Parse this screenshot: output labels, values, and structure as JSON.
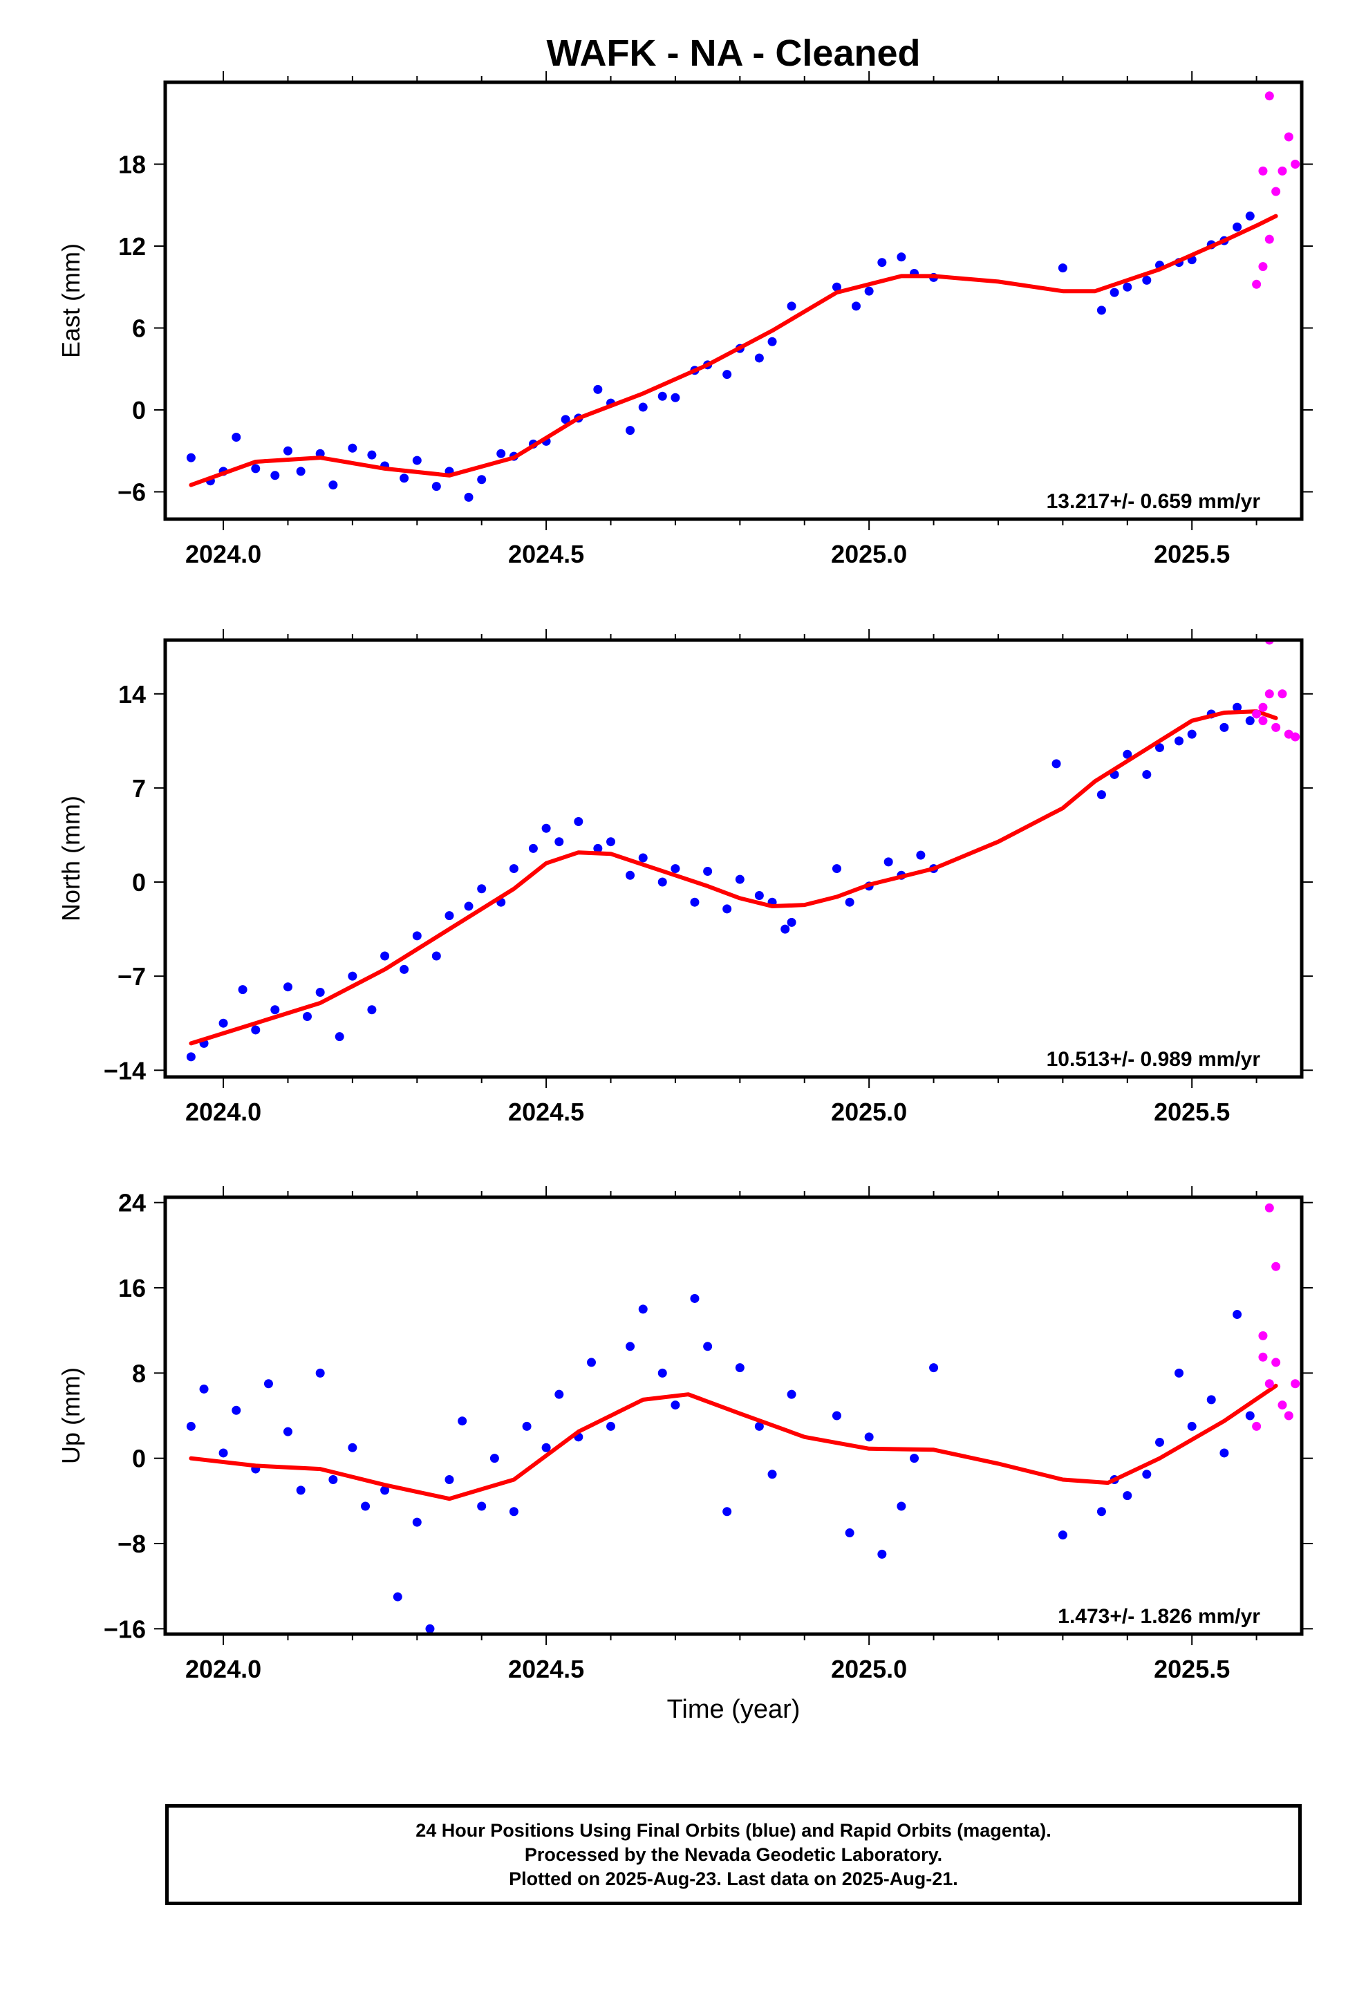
{
  "title": "WAFK  - NA - Cleaned",
  "xlabel": "Time (year)",
  "footer": [
    "24 Hour Positions Using Final Orbits (blue) and Rapid Orbits (magenta).",
    "Processed by the Nevada Geodetic Laboratory.",
    "Plotted on 2025-Aug-23. Last data on 2025-Aug-21."
  ],
  "colors": {
    "final_orbits": "#0000ff",
    "rapid_orbits": "#ff00ff",
    "model_fit": "#ff0000",
    "axes": "#000000"
  },
  "chart_data": [
    {
      "type": "scatter",
      "ylabel": "East (mm)",
      "xlim": [
        2023.91,
        2025.67
      ],
      "ylim": [
        -8,
        24
      ],
      "xticks": [
        2024.0,
        2024.5,
        2025.0,
        2025.5
      ],
      "xtick_labels": [
        "2024.0",
        "2024.5",
        "2025.0",
        "2025.5"
      ],
      "yticks": [
        -6,
        0,
        6,
        12,
        18
      ],
      "ytick_labels": [
        "−6",
        "0",
        "6",
        "12",
        "18"
      ],
      "rate_text": "13.217+/- 0.659 mm/yr",
      "grid": false,
      "series": [
        {
          "x": [
            2023.95,
            2024.05,
            2024.15,
            2024.25,
            2024.35,
            2024.45,
            2024.55,
            2024.65,
            2024.75,
            2024.85,
            2024.95,
            2025.05,
            2025.1,
            2025.2,
            2025.3,
            2025.35,
            2025.45,
            2025.55,
            2025.6,
            2025.63
          ],
          "values": [
            -5.5,
            -3.8,
            -3.5,
            -4.3,
            -4.8,
            -3.5,
            -0.6,
            1.2,
            3.3,
            5.8,
            8.6,
            9.8,
            9.8,
            9.4,
            8.7,
            8.7,
            10.3,
            12.4,
            13.5,
            14.2
          ]
        },
        {
          "x": [
            2023.95,
            2023.98,
            2024.0,
            2024.02,
            2024.05,
            2024.08,
            2024.1,
            2024.12,
            2024.15,
            2024.17,
            2024.2,
            2024.23,
            2024.25,
            2024.28,
            2024.3,
            2024.33,
            2024.35,
            2024.38,
            2024.4,
            2024.43,
            2024.45,
            2024.48,
            2024.5,
            2024.53,
            2024.55,
            2024.58,
            2024.6,
            2024.63,
            2024.65,
            2024.68,
            2024.7,
            2024.73,
            2024.75,
            2024.78,
            2024.8,
            2024.83,
            2024.85,
            2024.88,
            2024.95,
            2024.98,
            2025.0,
            2025.02,
            2025.05,
            2025.07,
            2025.1,
            2025.3,
            2025.36,
            2025.38,
            2025.4,
            2025.43,
            2025.45,
            2025.48,
            2025.5,
            2025.53,
            2025.55,
            2025.57,
            2025.59
          ],
          "values": [
            -3.5,
            -5.2,
            -4.5,
            -2.0,
            -4.3,
            -4.8,
            -3.0,
            -4.5,
            -3.2,
            -5.5,
            -2.8,
            -3.3,
            -4.1,
            -5.0,
            -3.7,
            -5.6,
            -4.5,
            -6.4,
            -5.1,
            -3.2,
            -3.4,
            -2.5,
            -2.3,
            -0.7,
            -0.6,
            1.5,
            0.5,
            -1.5,
            0.2,
            1.0,
            0.9,
            2.9,
            3.3,
            2.6,
            4.5,
            3.8,
            5.0,
            7.6,
            9.0,
            7.6,
            8.7,
            10.8,
            11.2,
            10.0,
            9.7,
            10.4,
            7.3,
            8.6,
            9.0,
            9.5,
            10.6,
            10.8,
            11.0,
            12.1,
            12.4,
            13.4,
            14.2
          ]
        },
        {
          "x": [
            2025.6,
            2025.61,
            2025.62,
            2025.63,
            2025.64,
            2025.65,
            2025.62,
            2025.66,
            2025.61
          ],
          "values": [
            9.2,
            10.5,
            12.5,
            16.0,
            17.5,
            20.0,
            23.0,
            18.0,
            17.5
          ]
        }
      ]
    },
    {
      "type": "scatter",
      "ylabel": "North (mm)",
      "xlim": [
        2023.91,
        2025.67
      ],
      "ylim": [
        -14.5,
        18
      ],
      "xticks": [
        2024.0,
        2024.5,
        2025.0,
        2025.5
      ],
      "xtick_labels": [
        "2024.0",
        "2024.5",
        "2025.0",
        "2025.5"
      ],
      "yticks": [
        -14,
        -7,
        0,
        7,
        14
      ],
      "ytick_labels": [
        "−14",
        "−7",
        "0",
        "7",
        "14"
      ],
      "rate_text": "10.513+/- 0.989 mm/yr",
      "grid": false,
      "series": [
        {
          "x": [
            2023.95,
            2024.05,
            2024.15,
            2024.25,
            2024.35,
            2024.45,
            2024.5,
            2024.55,
            2024.6,
            2024.65,
            2024.7,
            2024.75,
            2024.8,
            2024.85,
            2024.9,
            2024.95,
            2025.0,
            2025.05,
            2025.1,
            2025.2,
            2025.3,
            2025.35,
            2025.4,
            2025.45,
            2025.5,
            2025.55,
            2025.6,
            2025.63
          ],
          "values": [
            -12.0,
            -10.5,
            -9.0,
            -6.5,
            -3.5,
            -0.5,
            1.4,
            2.2,
            2.1,
            1.3,
            0.5,
            -0.3,
            -1.2,
            -1.8,
            -1.7,
            -1.1,
            -0.2,
            0.4,
            1.0,
            3.0,
            5.5,
            7.5,
            9.0,
            10.5,
            12.0,
            12.6,
            12.7,
            12.2
          ]
        },
        {
          "x": [
            2023.95,
            2023.97,
            2024.0,
            2024.03,
            2024.05,
            2024.08,
            2024.1,
            2024.13,
            2024.15,
            2024.18,
            2024.2,
            2024.23,
            2024.25,
            2024.28,
            2024.3,
            2024.33,
            2024.35,
            2024.38,
            2024.4,
            2024.43,
            2024.45,
            2024.48,
            2024.5,
            2024.52,
            2024.55,
            2024.58,
            2024.6,
            2024.63,
            2024.65,
            2024.68,
            2024.7,
            2024.73,
            2024.75,
            2024.78,
            2024.8,
            2024.83,
            2024.85,
            2024.87,
            2024.88,
            2024.95,
            2024.97,
            2025.0,
            2025.03,
            2025.05,
            2025.08,
            2025.1,
            2025.29,
            2025.36,
            2025.38,
            2025.4,
            2025.43,
            2025.45,
            2025.48,
            2025.5,
            2025.53,
            2025.55,
            2025.57,
            2025.59
          ],
          "values": [
            -13.0,
            -12.0,
            -10.5,
            -8.0,
            -11.0,
            -9.5,
            -7.8,
            -10.0,
            -8.2,
            -11.5,
            -7.0,
            -9.5,
            -5.5,
            -6.5,
            -4.0,
            -5.5,
            -2.5,
            -1.8,
            -0.5,
            -1.5,
            1.0,
            2.5,
            4.0,
            3.0,
            4.5,
            2.5,
            3.0,
            0.5,
            1.8,
            0.0,
            1.0,
            -1.5,
            0.8,
            -2.0,
            0.2,
            -1.0,
            -1.5,
            -3.5,
            -3.0,
            1.0,
            -1.5,
            -0.3,
            1.5,
            0.5,
            2.0,
            1.0,
            8.8,
            6.5,
            8.0,
            9.5,
            8.0,
            10.0,
            10.5,
            11.0,
            12.5,
            11.5,
            13.0,
            12.0
          ]
        },
        {
          "x": [
            2025.6,
            2025.61,
            2025.62,
            2025.63,
            2025.64,
            2025.65,
            2025.62,
            2025.66,
            2025.61
          ],
          "values": [
            12.5,
            13.0,
            14.0,
            11.5,
            14.0,
            11.0,
            18.0,
            10.8,
            12.0
          ]
        }
      ]
    },
    {
      "type": "scatter",
      "ylabel": "Up (mm)",
      "xlim": [
        2023.91,
        2025.67
      ],
      "ylim": [
        -16.5,
        24.5
      ],
      "xticks": [
        2024.0,
        2024.5,
        2025.0,
        2025.5
      ],
      "xtick_labels": [
        "2024.0",
        "2024.5",
        "2025.0",
        "2025.5"
      ],
      "yticks": [
        -16,
        -8,
        0,
        8,
        16,
        24
      ],
      "ytick_labels": [
        "−16",
        "−8",
        "0",
        "8",
        "16",
        "24"
      ],
      "rate_text": "1.473+/- 1.826 mm/yr",
      "grid": false,
      "series": [
        {
          "x": [
            2023.95,
            2024.05,
            2024.15,
            2024.25,
            2024.35,
            2024.45,
            2024.55,
            2024.65,
            2024.72,
            2024.8,
            2024.9,
            2025.0,
            2025.1,
            2025.2,
            2025.3,
            2025.37,
            2025.45,
            2025.55,
            2025.63
          ],
          "values": [
            0.0,
            -0.7,
            -1.0,
            -2.5,
            -3.8,
            -2.0,
            2.5,
            5.5,
            6.0,
            4.2,
            2.0,
            0.9,
            0.8,
            -0.5,
            -2.0,
            -2.3,
            0.0,
            3.5,
            6.8
          ]
        },
        {
          "x": [
            2023.95,
            2023.97,
            2024.0,
            2024.02,
            2024.05,
            2024.07,
            2024.1,
            2024.12,
            2024.15,
            2024.17,
            2024.2,
            2024.22,
            2024.25,
            2024.27,
            2024.3,
            2024.32,
            2024.35,
            2024.37,
            2024.4,
            2024.42,
            2024.45,
            2024.47,
            2024.5,
            2024.52,
            2024.55,
            2024.57,
            2024.6,
            2024.63,
            2024.65,
            2024.68,
            2024.7,
            2024.73,
            2024.75,
            2024.78,
            2024.8,
            2024.83,
            2024.85,
            2024.88,
            2024.95,
            2024.97,
            2025.0,
            2025.02,
            2025.05,
            2025.07,
            2025.1,
            2025.3,
            2025.36,
            2025.38,
            2025.4,
            2025.43,
            2025.45,
            2025.48,
            2025.5,
            2025.53,
            2025.55,
            2025.57,
            2025.59
          ],
          "values": [
            3.0,
            6.5,
            0.5,
            4.5,
            -1.0,
            7.0,
            2.5,
            -3.0,
            8.0,
            -2.0,
            1.0,
            -4.5,
            -3.0,
            -13.0,
            -6.0,
            -16.0,
            -2.0,
            3.5,
            -4.5,
            0.0,
            -5.0,
            3.0,
            1.0,
            6.0,
            2.0,
            9.0,
            3.0,
            10.5,
            14.0,
            8.0,
            5.0,
            15.0,
            10.5,
            -5.0,
            8.5,
            3.0,
            -1.5,
            6.0,
            4.0,
            -7.0,
            2.0,
            -9.0,
            -4.5,
            0.0,
            8.5,
            -7.2,
            -5.0,
            -2.0,
            -3.5,
            -1.5,
            1.5,
            8.0,
            3.0,
            5.5,
            0.5,
            13.5,
            4.0
          ]
        },
        {
          "x": [
            2025.6,
            2025.61,
            2025.62,
            2025.63,
            2025.64,
            2025.65,
            2025.62,
            2025.66,
            2025.61,
            2025.63
          ],
          "values": [
            3.0,
            11.5,
            7.0,
            9.0,
            5.0,
            4.0,
            23.5,
            7.0,
            9.5,
            18.0
          ]
        }
      ]
    }
  ]
}
